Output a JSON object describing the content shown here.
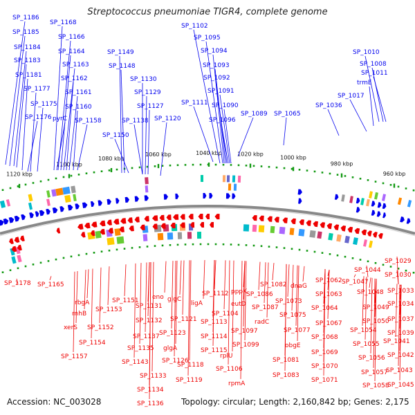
{
  "title": "Streptococcus pneumoniae TIGR4, complete genome",
  "footer": {
    "accession": "Accession: NC_003028",
    "topology": "Topology: circular; Length: 2,160,842 bp; Genes: 2,175"
  },
  "colors": {
    "forward": "#0000ee",
    "reverse": "#ee0000",
    "ticks": "#119911",
    "backbone": "#888888"
  },
  "scale_labels": [
    "1120 kbp",
    "1100 kbp",
    "1080 kbp",
    "1060 kbp",
    "1040 kbp",
    "1020 kbp",
    "1000 kbp",
    "980 kbp",
    "960 kbp"
  ],
  "top_labels": [
    "SP_1186",
    "SP_1185",
    "SP_1184",
    "SP_1183",
    "SP_1181",
    "SP_1177",
    "SP_1175",
    "SP_1176",
    "SP_1168",
    "SP_1166",
    "SP_1164",
    "SP_1163",
    "SP_1162",
    "SP_1161",
    "SP_1160",
    "pyrC",
    "SP_1158",
    "SP_1149",
    "SP_1148",
    "SP_1130",
    "SP_1129",
    "SP_1127",
    "SP_1138",
    "SP_1120",
    "SP_1150",
    "SP_1102",
    "SP_1095",
    "SP_1094",
    "SP_1093",
    "SP_1092",
    "SP_1091",
    "SP_1090",
    "SP_1096",
    "SP_1111",
    "SP_1089",
    "SP_1065",
    "SP_1036",
    "SP_1017",
    "SP_1010",
    "SP_1008",
    "SP_1011",
    "trmE"
  ],
  "bottom_labels": [
    "SP_1178",
    "SP_1165",
    "rbgA",
    "rnhB",
    "xerS",
    "SP_1157",
    "SP_1154",
    "SP_1153",
    "SP_1152",
    "SP_1151",
    "eno",
    "SP_1131",
    "SP_1132",
    "SP_1137",
    "SP_1135",
    "SP_1143",
    "SP_1133",
    "SP_1134",
    "SP_1136",
    "glgC",
    "SP_1121",
    "SP_1123",
    "glgA",
    "SP_1126",
    "ligA",
    "SP_1118",
    "SP_1119",
    "SP_1112",
    "SP_1113",
    "SP_1114",
    "SP_1115",
    "pppK",
    "eutD",
    "SP_1104",
    "SP_1097",
    "SP_1099",
    "rplU",
    "SP_1106",
    "rpmA",
    "SP_1082",
    "SP_1086",
    "SP_1087",
    "radC",
    "dnaG",
    "SP_1073",
    "SP_1075",
    "SP_1077",
    "obgE",
    "SP_1081",
    "SP_1083",
    "SP_1062",
    "SP_1063",
    "SP_1064",
    "SP_1067",
    "SP_1068",
    "SP_1069",
    "SP_1070",
    "SP_1071",
    "SP_1047",
    "SP_1044",
    "SP_1048",
    "SP_1049",
    "SP_1050",
    "SP_1054",
    "SP_1055",
    "SP_1056",
    "SP_1057",
    "SP_1058",
    "SP_1029",
    "SP_1030",
    "SP_1033",
    "SP_1034",
    "SP_1037",
    "SP_1039",
    "SP_1041",
    "SP_1042",
    "SP_1043",
    "SP_1045"
  ]
}
